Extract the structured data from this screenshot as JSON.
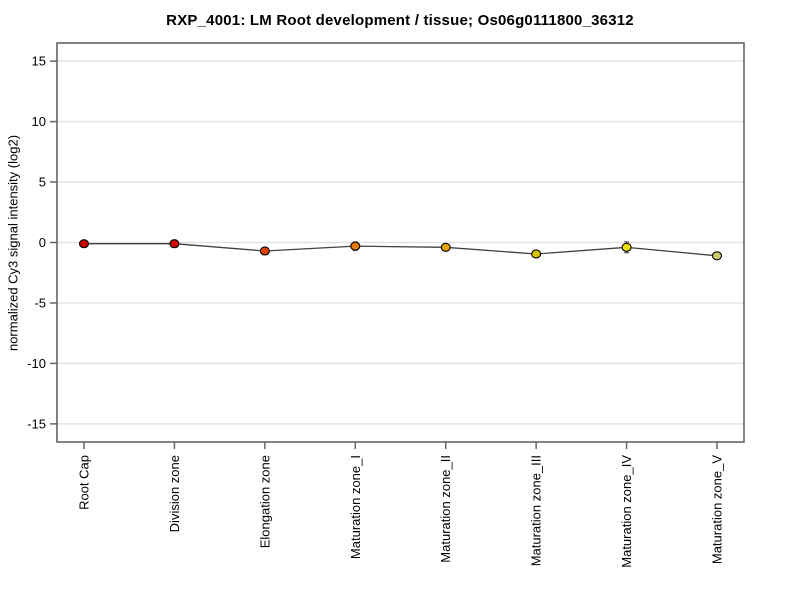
{
  "chart_data": {
    "type": "line",
    "title": "RXP_4001: LM Root development / tissue; Os06g0111800_36312",
    "xlabel": "",
    "ylabel": "normalized Cy3 signal intensity (log2)",
    "ylim": [
      -16.5,
      16.5
    ],
    "yticks": [
      -15,
      -10,
      -5,
      0,
      5,
      10,
      15
    ],
    "grid": true,
    "legend_position": "none",
    "categories": [
      "Root Cap",
      "Division zone",
      "Elongation zone",
      "Maturation zone_I",
      "Maturation zone_II",
      "Maturation zone_III",
      "Maturation zone_IV",
      "Maturation zone_V"
    ],
    "series": [
      {
        "name": "normalized Cy3 signal intensity (log2)",
        "values": [
          -0.1,
          -0.1,
          -0.7,
          -0.3,
          -0.4,
          -0.95,
          -0.4,
          -1.1
        ],
        "errors": [
          0.15,
          0.3,
          0.2,
          0.35,
          0.2,
          0.15,
          0.45,
          0.2
        ],
        "point_colors": [
          "#c80000",
          "#cd0a00",
          "#dd4400",
          "#e87b00",
          "#e6a300",
          "#d9c400",
          "#efe000",
          "#cfcb70"
        ],
        "line_color": "#404040"
      }
    ],
    "colors": {
      "grid": "#e2e2e2",
      "box_border": "#5a5a5a",
      "tick": "#666666",
      "text": "#000000",
      "marker_outline": "#000000",
      "background": "#ffffff"
    }
  }
}
